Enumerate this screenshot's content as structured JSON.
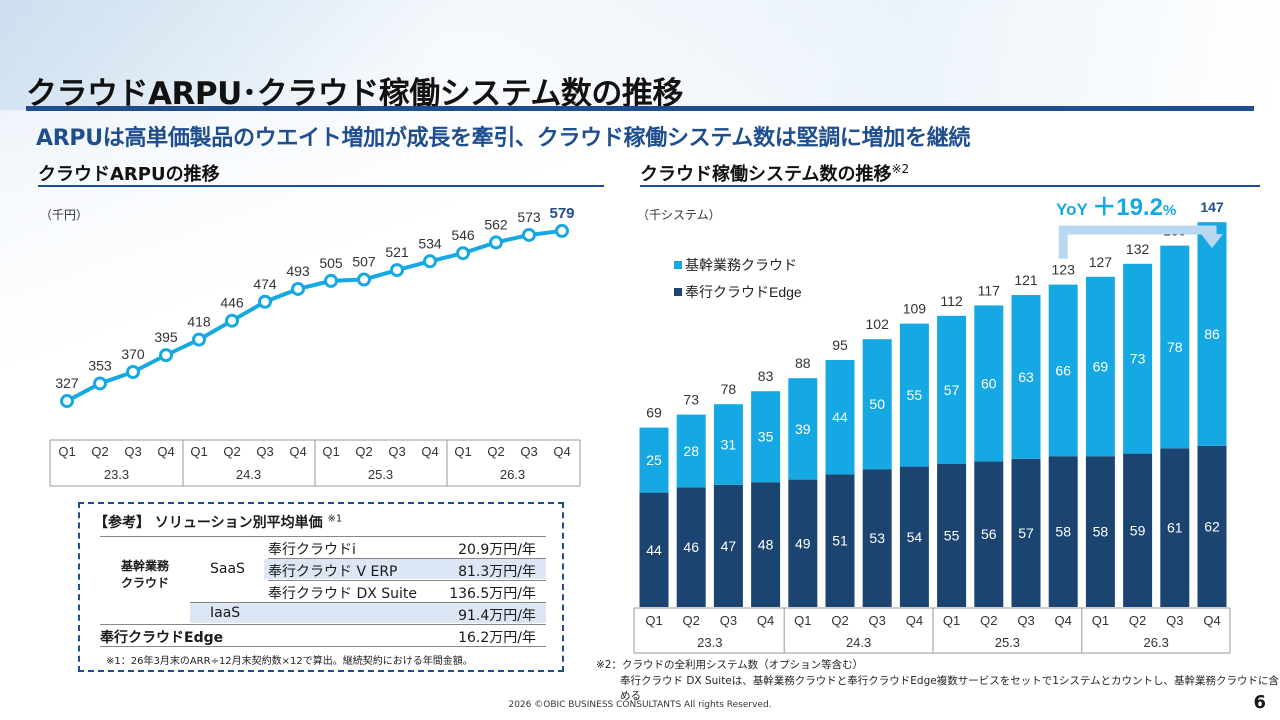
{
  "title": "クラウドARPU･クラウド稼働システム数の推移",
  "subtitle": "ARPUは高単価製品のウエイト増加が成長を牽引、クラウド稼働システム数は堅調に増加を継続",
  "left_section": {
    "heading": "クラウドARPUの推移",
    "unit": "（千円）"
  },
  "right_section": {
    "heading": "クラウド稼働システム数の推移",
    "heading_note": "※2",
    "unit": "（千システム）"
  },
  "yoy": {
    "prefix": "YoY",
    "value": "＋19.2",
    "suffix": "%"
  },
  "reference": {
    "title": "【参考】 ソリューション別平均単価",
    "title_note": "※1",
    "group_kikan": "基幹業務\nクラウド",
    "saas_label": "SaaS",
    "iaas_label": "IaaS",
    "edge_label": "奉行クラウドEdge",
    "rows": [
      {
        "name": "奉行クラウドi",
        "price": "20.9万円/年"
      },
      {
        "name": "奉行クラウド V ERP",
        "price": "81.3万円/年"
      },
      {
        "name": "奉行クラウド DX Suite",
        "price": "136.5万円/年"
      },
      {
        "name": "",
        "price": "91.4万円/年"
      },
      {
        "name": "",
        "price": "16.2万円/年"
      }
    ],
    "note": "※1：26年3月末のARR÷12月末契約数×12で算出。継続契約における年間金額。"
  },
  "footnote_line1": "※2：クラウドの全利用システム数（オプション等含む）",
  "footnote_line2": "奉行クラウド DX Suiteは、基幹業務クラウドと奉行クラウドEdge複数サービスをセットで1システムとカウントし、基幹業務クラウドに含める",
  "footer": "2026  ©OBIC BUSINESS CONSULTANTS All rights Reserved.",
  "page_number": "6",
  "colors": {
    "navy": "#1f4e8f",
    "light": "#16a8e3",
    "dark": "#1b4570",
    "line": "#16a8e3"
  },
  "chart_data": [
    {
      "type": "line",
      "title": "クラウドARPUの推移",
      "ylabel": "（千円）",
      "categories": [
        "Q1",
        "Q2",
        "Q3",
        "Q4",
        "Q1",
        "Q2",
        "Q3",
        "Q4",
        "Q1",
        "Q2",
        "Q3",
        "Q4",
        "Q1",
        "Q2",
        "Q3",
        "Q4"
      ],
      "groups": [
        "23.3",
        "24.3",
        "25.3",
        "26.3"
      ],
      "values": [
        327,
        353,
        370,
        395,
        418,
        446,
        474,
        493,
        505,
        507,
        521,
        534,
        546,
        562,
        573,
        579
      ],
      "ylim": [
        290,
        610
      ]
    },
    {
      "type": "bar",
      "stacked": true,
      "title": "クラウド稼働システム数の推移",
      "ylabel": "（千システム）",
      "categories": [
        "Q1",
        "Q2",
        "Q3",
        "Q4",
        "Q1",
        "Q2",
        "Q3",
        "Q4",
        "Q1",
        "Q2",
        "Q3",
        "Q4",
        "Q1",
        "Q2",
        "Q3",
        "Q4"
      ],
      "groups": [
        "23.3",
        "24.3",
        "25.3",
        "26.3"
      ],
      "legend": [
        "基幹業務クラウド",
        "奉行クラウドEdge"
      ],
      "series": [
        {
          "name": "奉行クラウドEdge",
          "values": [
            44,
            46,
            47,
            48,
            49,
            51,
            53,
            54,
            55,
            56,
            57,
            58,
            58,
            59,
            61,
            62
          ]
        },
        {
          "name": "基幹業務クラウド",
          "values": [
            25,
            28,
            31,
            35,
            39,
            44,
            50,
            55,
            57,
            60,
            63,
            66,
            69,
            73,
            78,
            86
          ]
        }
      ],
      "totals": [
        69,
        73,
        78,
        83,
        88,
        95,
        102,
        109,
        112,
        117,
        121,
        123,
        127,
        132,
        139,
        147
      ],
      "ylim": [
        0,
        150
      ]
    }
  ]
}
